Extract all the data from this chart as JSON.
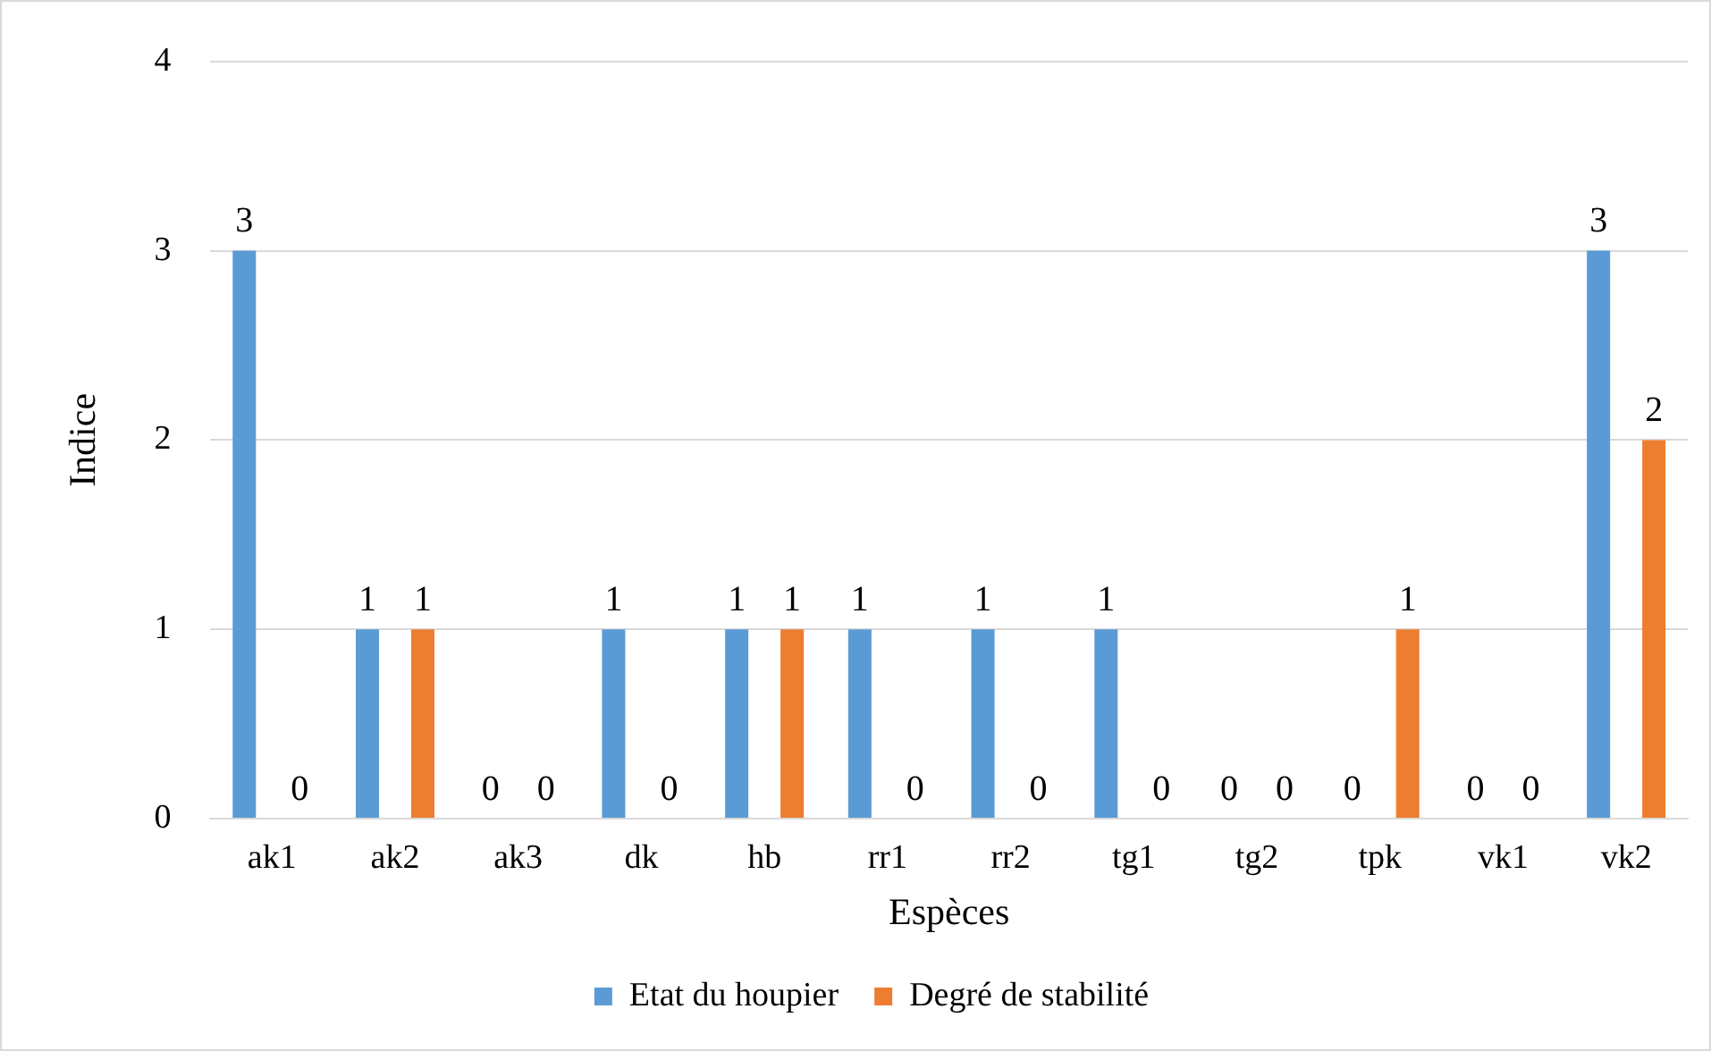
{
  "chart_data": {
    "type": "bar",
    "xlabel": "Espèces",
    "ylabel": "Indice",
    "categories": [
      "ak1",
      "ak2",
      "ak3",
      "dk",
      "hb",
      "rr1",
      "rr2",
      "tg1",
      "tg2",
      "tpk",
      "vk1",
      "vk2"
    ],
    "series": [
      {
        "name": "Etat du houpier",
        "color": "#5b9bd5",
        "values": [
          3,
          1,
          0,
          1,
          1,
          1,
          1,
          1,
          0,
          0,
          0,
          3
        ]
      },
      {
        "name": "Degré de stabilité",
        "color": "#ed7d31",
        "values": [
          0,
          1,
          0,
          0,
          1,
          0,
          0,
          0,
          0,
          1,
          0,
          2
        ]
      }
    ],
    "ylim": [
      0,
      4
    ],
    "yticks": [
      0,
      1,
      2,
      3,
      4
    ],
    "grid": "y",
    "legend": "bottom",
    "data_labels": true
  }
}
